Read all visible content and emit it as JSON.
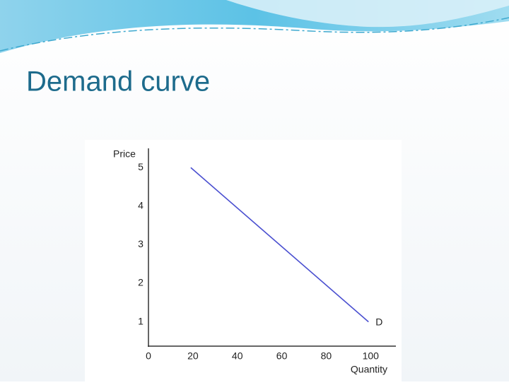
{
  "chart_data": {
    "type": "line",
    "title": "Demand curve",
    "x_label": "Quantity",
    "y_label": "Price",
    "x": [
      20,
      100
    ],
    "series": [
      {
        "name": "D",
        "color": "#4a4fd0",
        "values": [
          5,
          1
        ]
      }
    ],
    "xlim": [
      0,
      112
    ],
    "ylim": [
      0.37,
      5.5
    ],
    "xticks": [
      0,
      20,
      40,
      60,
      80,
      100
    ],
    "yticks": [
      1,
      2,
      3,
      4,
      5
    ]
  }
}
